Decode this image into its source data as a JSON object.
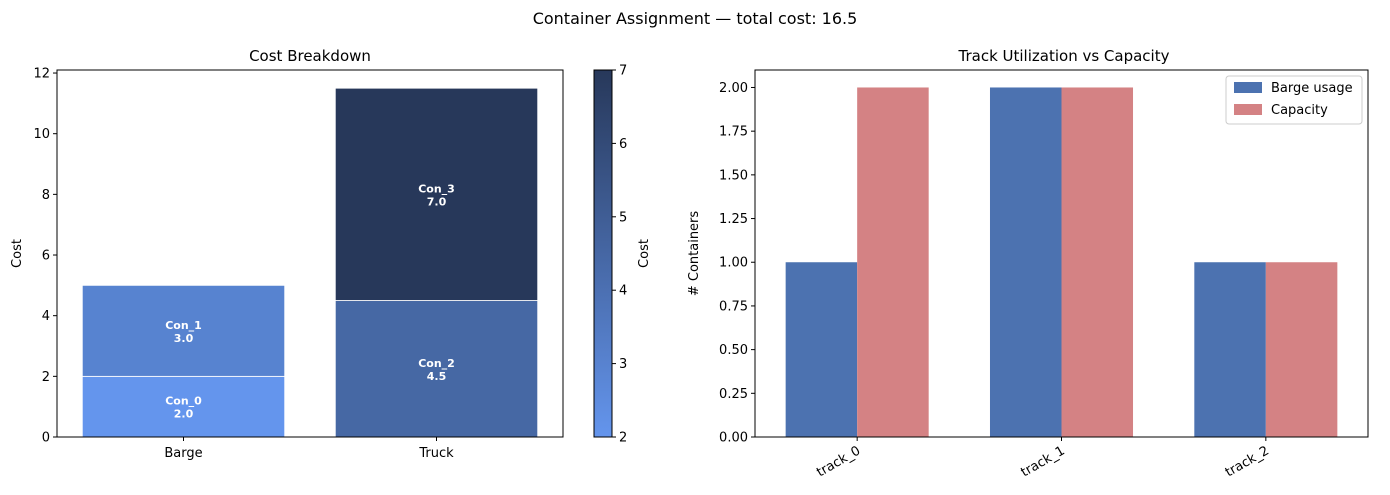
{
  "figure": {
    "suptitle": "Container Assignment — total cost: 16.5"
  },
  "chart_data": [
    {
      "type": "bar",
      "stacked": true,
      "title": "Cost Breakdown",
      "xlabel": "",
      "ylabel": "Cost",
      "ylim": [
        0,
        12.1
      ],
      "yticks": [
        0,
        2,
        4,
        6,
        8,
        10,
        12
      ],
      "categories": [
        "Barge",
        "Truck"
      ],
      "segments": [
        {
          "category": "Barge",
          "label": "Con_0",
          "value_text": "2.0",
          "start": 0,
          "value": 2.0,
          "color": "#6495ed"
        },
        {
          "category": "Barge",
          "label": "Con_1",
          "value_text": "3.0",
          "start": 2.0,
          "value": 3.0,
          "color": "#5783d0"
        },
        {
          "category": "Truck",
          "label": "Con_2",
          "value_text": "4.5",
          "start": 0,
          "value": 4.5,
          "color": "#4668a4"
        },
        {
          "category": "Truck",
          "label": "Con_3",
          "value_text": "7.0",
          "start": 4.5,
          "value": 7.0,
          "color": "#27385a"
        }
      ],
      "colorbar": {
        "label": "Cost",
        "range": [
          2,
          7
        ],
        "ticks": [
          2,
          3,
          4,
          5,
          6,
          7
        ],
        "color_low": "#6495ed",
        "color_high": "#27385a"
      }
    },
    {
      "type": "bar",
      "grouped": true,
      "title": "Track Utilization vs Capacity",
      "xlabel": "",
      "ylabel": "# Containers",
      "ylim": [
        0,
        2.1
      ],
      "yticks": [
        "0.00",
        "0.25",
        "0.50",
        "0.75",
        "1.00",
        "1.25",
        "1.50",
        "1.75",
        "2.00"
      ],
      "categories": [
        "track_0",
        "track_1",
        "track_2"
      ],
      "series": [
        {
          "name": "Barge usage",
          "values": [
            1,
            2,
            1
          ],
          "color": "#4c72b0"
        },
        {
          "name": "Capacity",
          "values": [
            2,
            2,
            1
          ],
          "color": "#d48284"
        }
      ],
      "legend": "top-right"
    }
  ]
}
